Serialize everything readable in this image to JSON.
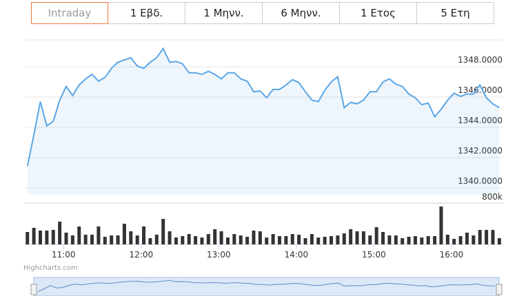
{
  "tabs": [
    {
      "label": "Intraday",
      "selected": true
    },
    {
      "label": "1 Εβδ."
    },
    {
      "label": "1 Μηνν."
    },
    {
      "label": "6 Μηνν."
    },
    {
      "label": "1 Ετος"
    },
    {
      "label": "5 Ετη"
    }
  ],
  "credits": "Highcharts.com",
  "chart_data": [
    {
      "type": "area",
      "color": "#5aa6e6",
      "x": [
        "10:32",
        "10:37",
        "10:42",
        "10:47",
        "10:52",
        "10:57",
        "11:02",
        "11:07",
        "11:12",
        "11:17",
        "11:22",
        "11:27",
        "11:32",
        "11:37",
        "11:42",
        "11:47",
        "11:52",
        "11:57",
        "12:02",
        "12:07",
        "12:12",
        "12:17",
        "12:22",
        "12:27",
        "12:32",
        "12:37",
        "12:42",
        "12:47",
        "12:52",
        "12:57",
        "13:02",
        "13:07",
        "13:12",
        "13:17",
        "13:22",
        "13:27",
        "13:32",
        "13:37",
        "13:42",
        "13:47",
        "13:52",
        "13:57",
        "14:02",
        "14:07",
        "14:12",
        "14:17",
        "14:22",
        "14:27",
        "14:32",
        "14:37",
        "14:42",
        "14:47",
        "14:52",
        "14:57",
        "15:02",
        "15:07",
        "15:12",
        "15:17",
        "15:22",
        "15:27",
        "15:32",
        "15:37",
        "15:42",
        "15:47",
        "15:52",
        "15:57",
        "16:02",
        "16:07",
        "16:12",
        "16:17",
        "16:22",
        "16:27",
        "16:32",
        "16:37"
      ],
      "values": [
        1341.45,
        1343.5,
        1345.7,
        1344.1,
        1344.4,
        1345.8,
        1346.7,
        1346.1,
        1346.8,
        1347.2,
        1347.5,
        1347.05,
        1347.3,
        1347.9,
        1348.3,
        1348.45,
        1348.6,
        1348.05,
        1347.9,
        1348.3,
        1348.6,
        1349.2,
        1348.3,
        1348.35,
        1348.2,
        1347.6,
        1347.6,
        1347.5,
        1347.7,
        1347.5,
        1347.2,
        1347.6,
        1347.6,
        1347.2,
        1347.05,
        1346.35,
        1346.4,
        1345.95,
        1346.5,
        1346.5,
        1346.8,
        1347.15,
        1346.95,
        1346.35,
        1345.8,
        1345.7,
        1346.45,
        1347.0,
        1347.35,
        1345.3,
        1345.65,
        1345.55,
        1345.8,
        1346.35,
        1346.35,
        1347.0,
        1347.2,
        1346.85,
        1346.7,
        1346.2,
        1345.95,
        1345.5,
        1345.6,
        1344.7,
        1345.2,
        1345.8,
        1346.25,
        1346.05,
        1346.2,
        1346.2,
        1346.8,
        1345.95,
        1345.55,
        1345.3
      ],
      "xlim": [
        "10:30",
        "16:40"
      ],
      "ylim": [
        1339.55,
        1349.77
      ],
      "yticks": [
        {
          "value": 1340,
          "label": "1340.0000"
        },
        {
          "value": 1342,
          "label": "1342.0000"
        },
        {
          "value": 1344,
          "label": "1344.0000"
        },
        {
          "value": 1346,
          "label": "1346.0000"
        },
        {
          "value": 1348,
          "label": "1348.0000"
        }
      ],
      "grid": true
    },
    {
      "type": "bar",
      "color": "#333333",
      "x": [
        "10:32",
        "10:37",
        "10:42",
        "10:47",
        "10:52",
        "10:57",
        "11:02",
        "11:07",
        "11:12",
        "11:17",
        "11:22",
        "11:27",
        "11:32",
        "11:37",
        "11:42",
        "11:47",
        "11:52",
        "11:57",
        "12:02",
        "12:07",
        "12:12",
        "12:17",
        "12:22",
        "12:27",
        "12:32",
        "12:37",
        "12:42",
        "12:47",
        "12:52",
        "12:57",
        "13:02",
        "13:07",
        "13:12",
        "13:17",
        "13:22",
        "13:27",
        "13:32",
        "13:37",
        "13:42",
        "13:47",
        "13:52",
        "13:57",
        "14:02",
        "14:07",
        "14:12",
        "14:17",
        "14:22",
        "14:27",
        "14:32",
        "14:37",
        "14:42",
        "14:47",
        "14:52",
        "14:57",
        "15:02",
        "15:07",
        "15:12",
        "15:17",
        "15:22",
        "15:27",
        "15:32",
        "15:37",
        "15:42",
        "15:47",
        "15:52",
        "15:57",
        "16:02",
        "16:07",
        "16:12",
        "16:17",
        "16:22",
        "16:27",
        "16:32",
        "16:37"
      ],
      "values": [
        240000,
        320000,
        267000,
        267000,
        280000,
        440000,
        227000,
        173000,
        347000,
        187000,
        187000,
        347000,
        147000,
        173000,
        173000,
        400000,
        253000,
        173000,
        347000,
        120000,
        187000,
        493000,
        253000,
        133000,
        160000,
        200000,
        160000,
        133000,
        200000,
        293000,
        253000,
        133000,
        200000,
        173000,
        147000,
        267000,
        253000,
        133000,
        200000,
        160000,
        160000,
        200000,
        187000,
        120000,
        200000,
        133000,
        147000,
        160000,
        173000,
        213000,
        293000,
        253000,
        253000,
        173000,
        333000,
        240000,
        173000,
        173000,
        120000,
        147000,
        160000,
        133000,
        160000,
        160000,
        733000,
        187000,
        107000,
        160000,
        227000,
        173000,
        280000,
        280000,
        280000,
        120000
      ],
      "xlim": [
        "10:30",
        "16:40"
      ],
      "ylim": [
        0,
        800000
      ],
      "yticks": [
        {
          "value": 800000,
          "label": "800k"
        }
      ],
      "xticks": [
        "11:00",
        "12:00",
        "13:00",
        "14:00",
        "15:00",
        "16:00"
      ]
    }
  ]
}
